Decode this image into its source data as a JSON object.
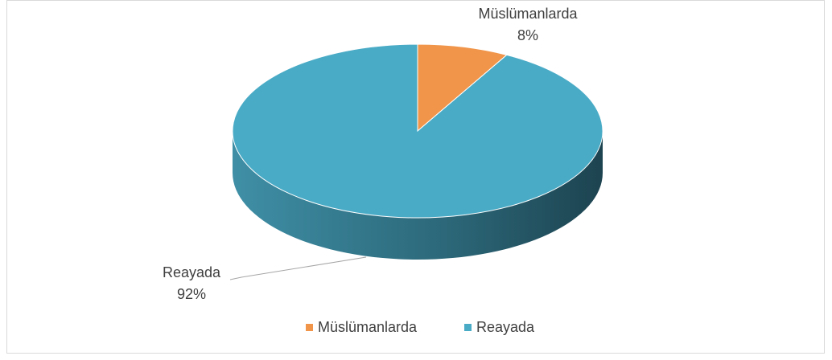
{
  "chart_data": {
    "type": "pie",
    "categories": [
      "Müslümanlarda",
      "Reayada"
    ],
    "values": [
      8,
      92
    ],
    "value_labels": [
      "8%",
      "92%"
    ],
    "colors": [
      "#f0954a",
      "#4aabc6"
    ],
    "legend": "bottom"
  }
}
